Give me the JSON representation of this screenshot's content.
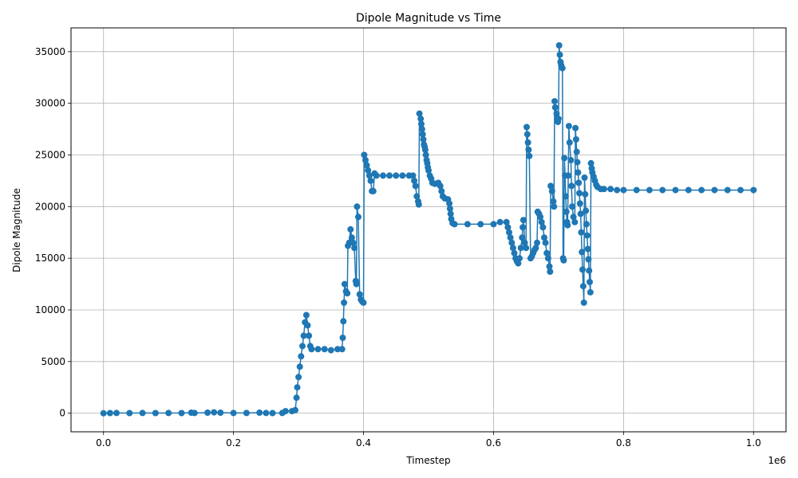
{
  "chart_data": {
    "type": "line",
    "title": "Dipole Magnitude vs Time",
    "xlabel": "Timestep",
    "ylabel": "Dipole Magnitude",
    "x_offset_label": "1e6",
    "xlim": [
      -50000,
      1050000
    ],
    "ylim": [
      -1800,
      37300
    ],
    "xticks": [
      0,
      200000,
      400000,
      600000,
      800000,
      1000000
    ],
    "xtick_labels": [
      "0.0",
      "0.2",
      "0.4",
      "0.6",
      "0.8",
      "1.0"
    ],
    "yticks": [
      0,
      5000,
      10000,
      15000,
      20000,
      25000,
      30000,
      35000
    ],
    "ytick_labels": [
      "0",
      "5000",
      "10000",
      "15000",
      "20000",
      "25000",
      "30000",
      "35000"
    ],
    "grid": true,
    "marker": "circle",
    "color": "#1f77b4",
    "series": [
      {
        "points": [
          [
            0,
            0
          ],
          [
            10000,
            10
          ],
          [
            20000,
            20
          ],
          [
            40000,
            10
          ],
          [
            60000,
            20
          ],
          [
            80000,
            10
          ],
          [
            100000,
            20
          ],
          [
            120000,
            10
          ],
          [
            135000,
            50
          ],
          [
            140000,
            20
          ],
          [
            160000,
            50
          ],
          [
            170000,
            80
          ],
          [
            180000,
            50
          ],
          [
            200000,
            20
          ],
          [
            220000,
            20
          ],
          [
            240000,
            50
          ],
          [
            250000,
            20
          ],
          [
            260000,
            10
          ],
          [
            275000,
            20
          ],
          [
            280000,
            200
          ],
          [
            290000,
            200
          ],
          [
            295000,
            300
          ],
          [
            297000,
            1500
          ],
          [
            298000,
            2500
          ],
          [
            300000,
            3500
          ],
          [
            302000,
            4500
          ],
          [
            304000,
            5500
          ],
          [
            306000,
            6500
          ],
          [
            308000,
            7500
          ],
          [
            310000,
            8800
          ],
          [
            312000,
            9500
          ],
          [
            314000,
            8500
          ],
          [
            316000,
            7500
          ],
          [
            318000,
            6500
          ],
          [
            320000,
            6200
          ],
          [
            330000,
            6200
          ],
          [
            340000,
            6200
          ],
          [
            350000,
            6100
          ],
          [
            360000,
            6200
          ],
          [
            367000,
            6200
          ],
          [
            368000,
            7300
          ],
          [
            369000,
            8900
          ],
          [
            370000,
            10700
          ],
          [
            371000,
            12500
          ],
          [
            373000,
            11800
          ],
          [
            375000,
            11600
          ],
          [
            376000,
            16200
          ],
          [
            378000,
            16500
          ],
          [
            380000,
            17800
          ],
          [
            382000,
            17000
          ],
          [
            384000,
            16500
          ],
          [
            386000,
            16000
          ],
          [
            388000,
            12800
          ],
          [
            389000,
            12500
          ],
          [
            390000,
            20000
          ],
          [
            392000,
            19000
          ],
          [
            394000,
            11500
          ],
          [
            396000,
            11000
          ],
          [
            398000,
            10800
          ],
          [
            400000,
            10700
          ],
          [
            401000,
            25000
          ],
          [
            403000,
            24500
          ],
          [
            405000,
            24000
          ],
          [
            407000,
            23500
          ],
          [
            409000,
            23000
          ],
          [
            411000,
            22500
          ],
          [
            413000,
            21500
          ],
          [
            415000,
            21500
          ],
          [
            417000,
            23200
          ],
          [
            420000,
            23000
          ],
          [
            430000,
            23000
          ],
          [
            440000,
            23000
          ],
          [
            450000,
            23000
          ],
          [
            460000,
            23000
          ],
          [
            470000,
            23000
          ],
          [
            476000,
            23000
          ],
          [
            478000,
            22500
          ],
          [
            480000,
            22000
          ],
          [
            482000,
            21000
          ],
          [
            484000,
            20500
          ],
          [
            485000,
            20200
          ],
          [
            486000,
            29000
          ],
          [
            488000,
            28500
          ],
          [
            489000,
            28000
          ],
          [
            490000,
            27500
          ],
          [
            491000,
            27000
          ],
          [
            492000,
            26500
          ],
          [
            493000,
            26000
          ],
          [
            494000,
            25800
          ],
          [
            495000,
            25500
          ],
          [
            496000,
            25000
          ],
          [
            497000,
            24500
          ],
          [
            498000,
            24200
          ],
          [
            499000,
            23800
          ],
          [
            500000,
            23500
          ],
          [
            502000,
            23000
          ],
          [
            504000,
            22700
          ],
          [
            506000,
            22300
          ],
          [
            510000,
            22200
          ],
          [
            515000,
            22300
          ],
          [
            518000,
            22000
          ],
          [
            520000,
            21500
          ],
          [
            522000,
            21000
          ],
          [
            525000,
            20800
          ],
          [
            530000,
            20700
          ],
          [
            532000,
            20300
          ],
          [
            533000,
            19800
          ],
          [
            534000,
            19300
          ],
          [
            535000,
            18800
          ],
          [
            537000,
            18400
          ],
          [
            540000,
            18300
          ],
          [
            560000,
            18300
          ],
          [
            580000,
            18300
          ],
          [
            600000,
            18300
          ],
          [
            610000,
            18500
          ],
          [
            620000,
            18500
          ],
          [
            622000,
            18000
          ],
          [
            624000,
            17500
          ],
          [
            626000,
            17000
          ],
          [
            628000,
            16500
          ],
          [
            630000,
            16000
          ],
          [
            632000,
            15500
          ],
          [
            634000,
            15000
          ],
          [
            636000,
            14700
          ],
          [
            638000,
            14500
          ],
          [
            640000,
            15000
          ],
          [
            642000,
            16000
          ],
          [
            644000,
            17000
          ],
          [
            645000,
            18000
          ],
          [
            646000,
            18700
          ],
          [
            648000,
            16500
          ],
          [
            650000,
            16000
          ],
          [
            651000,
            27700
          ],
          [
            652000,
            27000
          ],
          [
            653000,
            26200
          ],
          [
            654000,
            25500
          ],
          [
            655000,
            24900
          ],
          [
            657000,
            15000
          ],
          [
            659000,
            15200
          ],
          [
            661000,
            15500
          ],
          [
            663000,
            15800
          ],
          [
            665000,
            16000
          ],
          [
            667000,
            16500
          ],
          [
            668000,
            19500
          ],
          [
            670000,
            19300
          ],
          [
            672000,
            19000
          ],
          [
            674000,
            18500
          ],
          [
            676000,
            18000
          ],
          [
            678000,
            17000
          ],
          [
            680000,
            16500
          ],
          [
            682000,
            15500
          ],
          [
            684000,
            15000
          ],
          [
            686000,
            14200
          ],
          [
            687000,
            13700
          ],
          [
            688000,
            22000
          ],
          [
            690000,
            21500
          ],
          [
            692000,
            20500
          ],
          [
            693000,
            20000
          ],
          [
            694000,
            30200
          ],
          [
            695000,
            29600
          ],
          [
            697000,
            29000
          ],
          [
            698000,
            28500
          ],
          [
            699000,
            28200
          ],
          [
            700000,
            28500
          ],
          [
            701000,
            35600
          ],
          [
            702000,
            34700
          ],
          [
            703000,
            34000
          ],
          [
            704000,
            33700
          ],
          [
            706000,
            33400
          ],
          [
            707000,
            15000
          ],
          [
            708000,
            14800
          ],
          [
            709000,
            24700
          ],
          [
            710000,
            23000
          ],
          [
            711000,
            21000
          ],
          [
            712000,
            19500
          ],
          [
            713000,
            18500
          ],
          [
            714000,
            18200
          ],
          [
            715000,
            23000
          ],
          [
            716000,
            27800
          ],
          [
            717000,
            26200
          ],
          [
            719000,
            24500
          ],
          [
            720000,
            22000
          ],
          [
            721000,
            20000
          ],
          [
            723000,
            19000
          ],
          [
            725000,
            18500
          ],
          [
            726000,
            27600
          ],
          [
            727000,
            26500
          ],
          [
            728000,
            25300
          ],
          [
            729000,
            24300
          ],
          [
            730000,
            23300
          ],
          [
            731000,
            22300
          ],
          [
            732000,
            21300
          ],
          [
            733000,
            20300
          ],
          [
            734000,
            19300
          ],
          [
            735000,
            17500
          ],
          [
            736000,
            15600
          ],
          [
            737000,
            13900
          ],
          [
            738000,
            12300
          ],
          [
            739000,
            10700
          ],
          [
            740000,
            22800
          ],
          [
            741000,
            21200
          ],
          [
            742000,
            19600
          ],
          [
            743000,
            18300
          ],
          [
            744000,
            17200
          ],
          [
            745000,
            15900
          ],
          [
            746000,
            14900
          ],
          [
            747000,
            13800
          ],
          [
            748000,
            12700
          ],
          [
            749000,
            11700
          ],
          [
            750000,
            24200
          ],
          [
            751000,
            23700
          ],
          [
            752000,
            23300
          ],
          [
            754000,
            22900
          ],
          [
            756000,
            22500
          ],
          [
            758000,
            22100
          ],
          [
            760000,
            21900
          ],
          [
            765000,
            21700
          ],
          [
            770000,
            21700
          ],
          [
            780000,
            21700
          ],
          [
            790000,
            21600
          ],
          [
            800000,
            21600
          ],
          [
            820000,
            21600
          ],
          [
            840000,
            21600
          ],
          [
            860000,
            21600
          ],
          [
            880000,
            21600
          ],
          [
            900000,
            21600
          ],
          [
            920000,
            21600
          ],
          [
            940000,
            21600
          ],
          [
            960000,
            21600
          ],
          [
            980000,
            21600
          ],
          [
            1000000,
            21600
          ]
        ]
      }
    ]
  }
}
